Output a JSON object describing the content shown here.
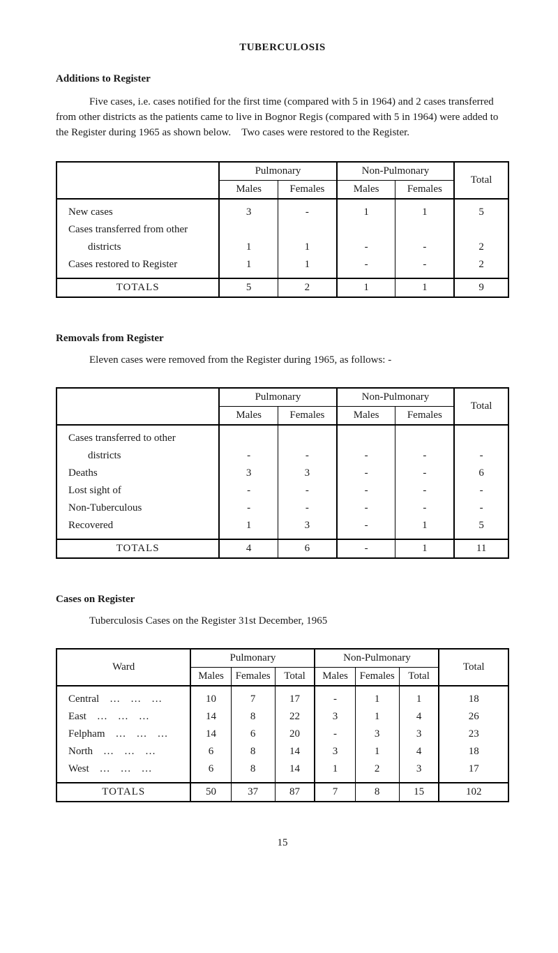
{
  "title": "TUBERCULOSIS",
  "sections": {
    "additions": {
      "heading": "Additions to Register",
      "text": "Five cases, i.e. cases notified for the first time (compared with 5 in 1964) and 2 cases transferred from other districts as the patients came to live in Bognor Regis (compared with 5 in 1964) were added to the Register during 1965 as shown below. Two cases were restored to the Register."
    },
    "removals": {
      "heading": "Removals from Register",
      "text": "Eleven cases were removed from the Register during 1965, as follows: -"
    },
    "cases": {
      "heading": "Cases on Register",
      "text": "Tuberculosis Cases on the Register 31st December, 1965"
    }
  },
  "headers": {
    "pulmonary": "Pulmonary",
    "nonpulmonary": "Non-Pulmonary",
    "males": "Males",
    "females": "Females",
    "total": "Total",
    "totals": "TOTALS",
    "ward": "Ward"
  },
  "table1": {
    "rows": [
      {
        "label": "New cases",
        "pm": "3",
        "pf": "-",
        "nm": "1",
        "nf": "1",
        "t": "5",
        "indent": false
      },
      {
        "label": "Cases transferred from other",
        "pm": "",
        "pf": "",
        "nm": "",
        "nf": "",
        "t": "",
        "indent": false
      },
      {
        "label": "districts",
        "pm": "1",
        "pf": "1",
        "nm": "-",
        "nf": "-",
        "t": "2",
        "indent": true
      },
      {
        "label": "Cases restored to Register",
        "pm": "1",
        "pf": "1",
        "nm": "-",
        "nf": "-",
        "t": "2",
        "indent": false
      }
    ],
    "totals": {
      "pm": "5",
      "pf": "2",
      "nm": "1",
      "nf": "1",
      "t": "9"
    }
  },
  "table2": {
    "rows": [
      {
        "label": "Cases transferred to other",
        "pm": "",
        "pf": "",
        "nm": "",
        "nf": "",
        "t": "",
        "indent": false
      },
      {
        "label": "districts",
        "pm": "-",
        "pf": "-",
        "nm": "-",
        "nf": "-",
        "t": "-",
        "indent": true
      },
      {
        "label": "Deaths",
        "pm": "3",
        "pf": "3",
        "nm": "-",
        "nf": "-",
        "t": "6",
        "indent": false
      },
      {
        "label": "Lost sight of",
        "pm": "-",
        "pf": "-",
        "nm": "-",
        "nf": "-",
        "t": "-",
        "indent": false
      },
      {
        "label": "Non-Tuberculous",
        "pm": "-",
        "pf": "-",
        "nm": "-",
        "nf": "-",
        "t": "-",
        "indent": false
      },
      {
        "label": "Recovered",
        "pm": "1",
        "pf": "3",
        "nm": "-",
        "nf": "1",
        "t": "5",
        "indent": false
      }
    ],
    "totals": {
      "pm": "4",
      "pf": "6",
      "nm": "-",
      "nf": "1",
      "t": "11"
    }
  },
  "table3": {
    "wards": [
      {
        "name": "Central",
        "pm": "10",
        "pf": "7",
        "pt": "17",
        "nm": "-",
        "nf": "1",
        "nt": "1",
        "t": "18"
      },
      {
        "name": "East",
        "pm": "14",
        "pf": "8",
        "pt": "22",
        "nm": "3",
        "nf": "1",
        "nt": "4",
        "t": "26"
      },
      {
        "name": "Felpham",
        "pm": "14",
        "pf": "6",
        "pt": "20",
        "nm": "-",
        "nf": "3",
        "nt": "3",
        "t": "23"
      },
      {
        "name": "North",
        "pm": "6",
        "pf": "8",
        "pt": "14",
        "nm": "3",
        "nf": "1",
        "nt": "4",
        "t": "18"
      },
      {
        "name": "West",
        "pm": "6",
        "pf": "8",
        "pt": "14",
        "nm": "1",
        "nf": "2",
        "nt": "3",
        "t": "17"
      }
    ],
    "totals": {
      "pm": "50",
      "pf": "37",
      "pt": "87",
      "nm": "7",
      "nf": "8",
      "nt": "15",
      "t": "102"
    }
  },
  "dots": " … … …",
  "pageNumber": "15"
}
